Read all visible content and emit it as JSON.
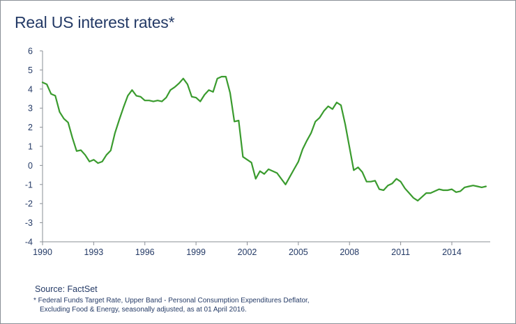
{
  "colors": {
    "line": "#3a9b2e",
    "text": "#243a66",
    "axis": "#8a8f96"
  },
  "source": "Source: FactSet",
  "footnote": {
    "line1": "* Federal Funds Target Rate, Upper Band - Personal Consumption Expenditures Deflator,",
    "line2": "Excluding Food & Energy, seasonally adjusted, as at 01 April 2016."
  },
  "chart_data": {
    "type": "line",
    "title": "Real US interest rates*",
    "xlabel": "",
    "ylabel": "",
    "xlim": [
      1990,
      2016.25
    ],
    "ylim": [
      -4,
      6
    ],
    "x_ticks": [
      "1990",
      "1993",
      "1996",
      "1999",
      "2002",
      "2005",
      "2008",
      "2011",
      "2014"
    ],
    "y_ticks": [
      "6",
      "5",
      "4",
      "3",
      "2",
      "1",
      "0",
      "-1",
      "-2",
      "-3",
      "-4"
    ],
    "grid": false,
    "series": [
      {
        "x": [
          1990,
          1990.25,
          1990.5,
          1990.75,
          1991,
          1991.25,
          1991.5,
          1991.75,
          1992,
          1992.25,
          1992.5,
          1992.75,
          1993,
          1993.25,
          1993.5,
          1993.75,
          1994,
          1994.25,
          1994.5,
          1994.75,
          1995,
          1995.25,
          1995.5,
          1995.75,
          1996,
          1996.25,
          1996.5,
          1996.75,
          1997,
          1997.25,
          1997.5,
          1997.75,
          1998,
          1998.25,
          1998.5,
          1998.75,
          1999,
          1999.25,
          1999.5,
          1999.75,
          2000,
          2000.25,
          2000.5,
          2000.75,
          2001,
          2001.25,
          2001.5,
          2001.75,
          2002,
          2002.25,
          2002.5,
          2002.75,
          2003,
          2003.25,
          2003.5,
          2003.75,
          2004,
          2004.25,
          2004.5,
          2004.75,
          2005,
          2005.25,
          2005.5,
          2005.75,
          2006,
          2006.25,
          2006.5,
          2006.75,
          2007,
          2007.25,
          2007.5,
          2007.75,
          2008,
          2008.25,
          2008.5,
          2008.75,
          2009,
          2009.25,
          2009.5,
          2009.75,
          2010,
          2010.25,
          2010.5,
          2010.75,
          2011,
          2011.25,
          2011.5,
          2011.75,
          2012,
          2012.25,
          2012.5,
          2012.75,
          2013,
          2013.25,
          2013.5,
          2013.75,
          2014,
          2014.25,
          2014.5,
          2014.75,
          2015,
          2015.25,
          2015.5,
          2015.75,
          2016
        ],
        "y": [
          4.35,
          4.25,
          3.75,
          3.65,
          2.8,
          2.45,
          2.25,
          1.45,
          0.75,
          0.8,
          0.55,
          0.2,
          0.3,
          0.12,
          0.2,
          0.55,
          0.78,
          1.7,
          2.4,
          3.05,
          3.65,
          3.95,
          3.65,
          3.6,
          3.4,
          3.4,
          3.35,
          3.4,
          3.35,
          3.55,
          3.95,
          4.1,
          4.3,
          4.55,
          4.25,
          3.6,
          3.55,
          3.35,
          3.7,
          3.95,
          3.85,
          4.55,
          4.65,
          4.65,
          3.8,
          2.3,
          2.35,
          0.45,
          0.3,
          0.15,
          -0.7,
          -0.3,
          -0.45,
          -0.2,
          -0.3,
          -0.4,
          -0.7,
          -1.0,
          -0.6,
          -0.2,
          0.2,
          0.85,
          1.3,
          1.7,
          2.3,
          2.5,
          2.85,
          3.1,
          2.95,
          3.3,
          3.15,
          2.15,
          0.95,
          -0.25,
          -0.1,
          -0.35,
          -0.85,
          -0.85,
          -0.8,
          -1.25,
          -1.3,
          -1.05,
          -0.95,
          -0.7,
          -0.85,
          -1.2,
          -1.45,
          -1.7,
          -1.85,
          -1.65,
          -1.45,
          -1.45,
          -1.35,
          -1.25,
          -1.3,
          -1.3,
          -1.25,
          -1.4,
          -1.35,
          -1.15,
          -1.1,
          -1.05,
          -1.1,
          -1.15,
          -1.1
        ]
      }
    ]
  }
}
